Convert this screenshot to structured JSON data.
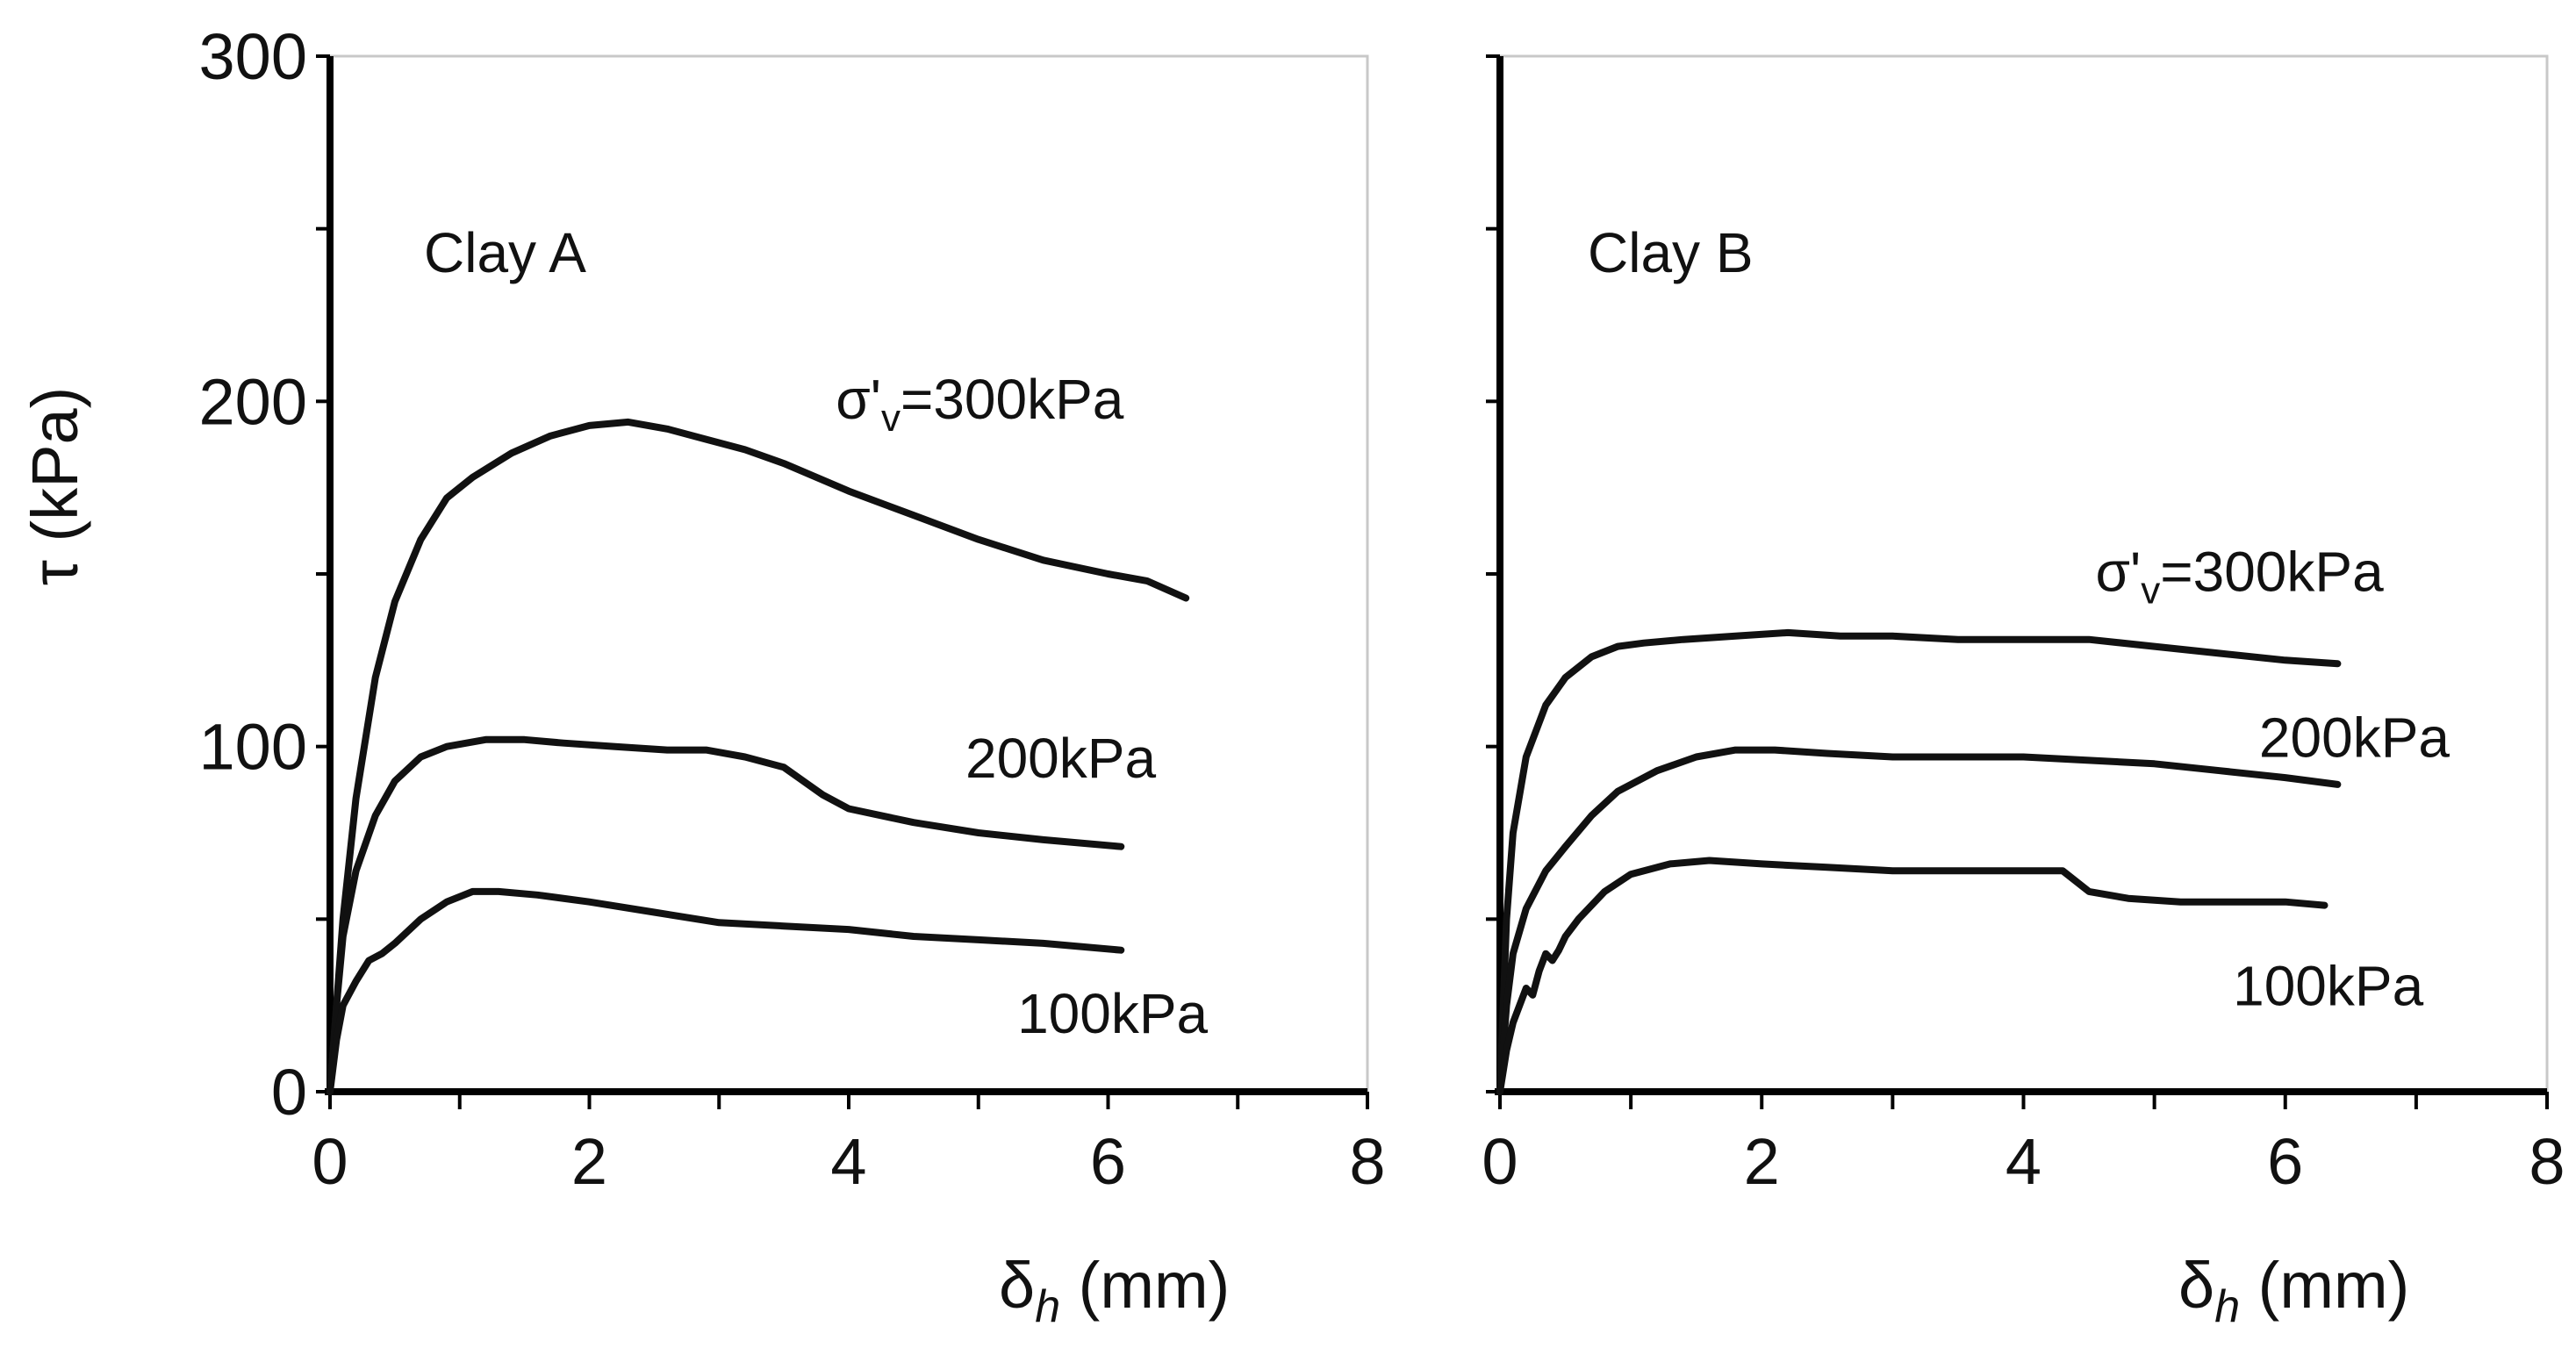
{
  "chart_data": [
    {
      "type": "line",
      "panel": "left",
      "title": "Clay A",
      "xlabel": {
        "symbol": "δ",
        "subscript": "h",
        "unit": " (mm)"
      },
      "ylabel": {
        "symbol": "τ",
        "unit": "  (kPa)"
      },
      "xlim": [
        0,
        8
      ],
      "ylim": [
        0,
        300
      ],
      "xticks": [
        0,
        2,
        4,
        6,
        8
      ],
      "yticks": [
        0,
        100,
        200,
        300
      ],
      "series": [
        {
          "name": "σ'v=300kPa",
          "label": {
            "prefix": "σ'",
            "sub": "v",
            "suffix": "=300kPa",
            "anchor_x": 3.9,
            "anchor_y": 195
          },
          "x": [
            0,
            0.1,
            0.2,
            0.35,
            0.5,
            0.7,
            0.9,
            1.1,
            1.4,
            1.7,
            2.0,
            2.3,
            2.6,
            2.9,
            3.2,
            3.5,
            4.0,
            4.5,
            5.0,
            5.5,
            6.0,
            6.3,
            6.6
          ],
          "y": [
            0,
            50,
            85,
            120,
            142,
            160,
            172,
            178,
            185,
            190,
            193,
            194,
            192,
            189,
            186,
            182,
            174,
            167,
            160,
            154,
            150,
            148,
            143
          ]
        },
        {
          "name": "200kPa",
          "label": {
            "text": "200kPa",
            "anchor_x": 4.9,
            "anchor_y": 91
          },
          "x": [
            0,
            0.05,
            0.1,
            0.2,
            0.35,
            0.5,
            0.7,
            0.9,
            1.2,
            1.5,
            1.8,
            2.2,
            2.6,
            2.9,
            3.2,
            3.5,
            3.8,
            4.0,
            4.5,
            5.0,
            5.5,
            6.1
          ],
          "y": [
            0,
            25,
            45,
            64,
            80,
            90,
            97,
            100,
            102,
            102,
            101,
            100,
            99,
            99,
            97,
            94,
            86,
            82,
            78,
            75,
            73,
            71
          ]
        },
        {
          "name": "100kPa",
          "label": {
            "text": "100kPa",
            "anchor_x": 5.3,
            "anchor_y": 17
          },
          "x": [
            0,
            0.05,
            0.1,
            0.2,
            0.3,
            0.4,
            0.5,
            0.7,
            0.9,
            1.1,
            1.3,
            1.6,
            2.0,
            2.5,
            3.0,
            3.5,
            4.0,
            4.5,
            5.0,
            5.5,
            6.1
          ],
          "y": [
            0,
            15,
            25,
            32,
            38,
            40,
            43,
            50,
            55,
            58,
            58,
            57,
            55,
            52,
            49,
            48,
            47,
            45,
            44,
            43,
            41
          ]
        }
      ]
    },
    {
      "type": "line",
      "panel": "right",
      "title": "Clay B",
      "xlabel": {
        "symbol": "δ",
        "subscript": "h",
        "unit": " (mm)"
      },
      "ylabel": null,
      "xlim": [
        0,
        8
      ],
      "ylim": [
        0,
        300
      ],
      "xticks": [
        0,
        2,
        4,
        6,
        8
      ],
      "yticks": [],
      "series": [
        {
          "name": "σ'v=300kPa",
          "label": {
            "prefix": "σ'",
            "sub": "v",
            "suffix": "=300kPa",
            "anchor_x": 4.55,
            "anchor_y": 145
          },
          "x": [
            0,
            0.05,
            0.1,
            0.2,
            0.35,
            0.5,
            0.7,
            0.9,
            1.1,
            1.4,
            1.8,
            2.2,
            2.6,
            3.0,
            3.5,
            4.0,
            4.5,
            5.0,
            5.5,
            6.0,
            6.4
          ],
          "y": [
            0,
            50,
            75,
            97,
            112,
            120,
            126,
            129,
            130,
            131,
            132,
            133,
            132,
            132,
            131,
            131,
            131,
            129,
            127,
            125,
            124
          ]
        },
        {
          "name": "200kPa",
          "label": {
            "text": "200kPa",
            "anchor_x": 5.8,
            "anchor_y": 97
          },
          "x": [
            0,
            0.05,
            0.1,
            0.2,
            0.35,
            0.5,
            0.7,
            0.9,
            1.2,
            1.5,
            1.8,
            2.1,
            2.5,
            3.0,
            3.5,
            4.0,
            4.5,
            5.0,
            5.5,
            6.0,
            6.4
          ],
          "y": [
            0,
            25,
            40,
            53,
            64,
            71,
            80,
            87,
            93,
            97,
            99,
            99,
            98,
            97,
            97,
            97,
            96,
            95,
            93,
            91,
            89
          ]
        },
        {
          "name": "100kPa",
          "label": {
            "text": "100kPa",
            "anchor_x": 5.6,
            "anchor_y": 25
          },
          "x": [
            0,
            0.05,
            0.1,
            0.2,
            0.25,
            0.3,
            0.35,
            0.4,
            0.45,
            0.5,
            0.6,
            0.8,
            1.0,
            1.3,
            1.6,
            2.0,
            2.5,
            3.0,
            3.5,
            4.0,
            4.3,
            4.5,
            4.8,
            5.2,
            5.6,
            6.0,
            6.3
          ],
          "y": [
            0,
            12,
            20,
            30,
            28,
            35,
            40,
            38,
            41,
            45,
            50,
            58,
            63,
            66,
            67,
            66,
            65,
            64,
            64,
            64,
            64,
            58,
            56,
            55,
            55,
            55,
            54
          ]
        }
      ]
    }
  ]
}
